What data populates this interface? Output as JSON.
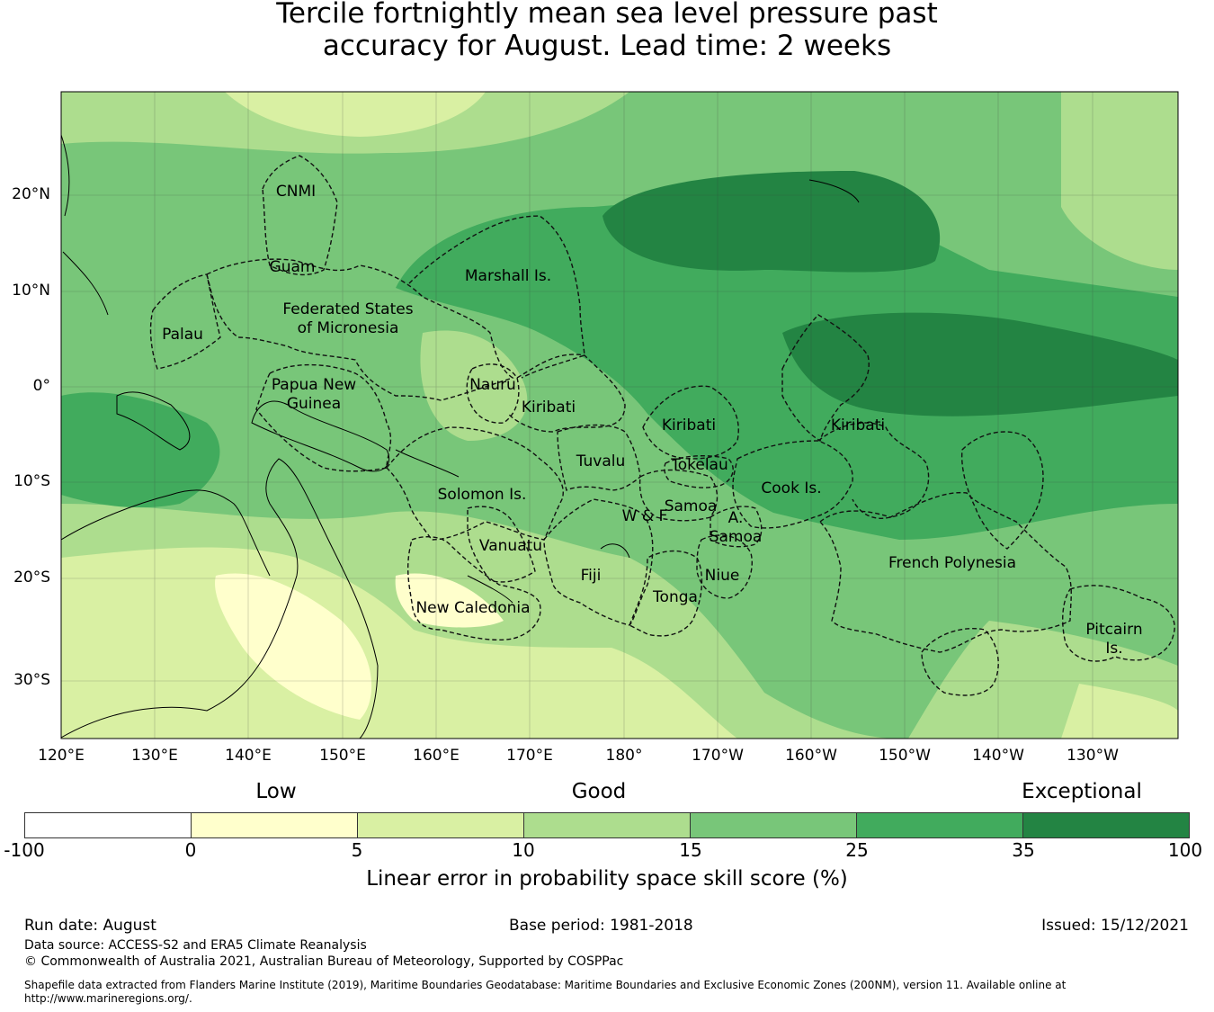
{
  "title": {
    "line1": "Tercile fortnightly mean sea level pressure past",
    "line2": "accuracy for August. Lead time: 2 weeks"
  },
  "map": {
    "lat_labels": [
      "20°N",
      "10°N",
      "0°",
      "10°S",
      "20°S",
      "30°S"
    ],
    "lon_labels": [
      "120°E",
      "130°E",
      "140°E",
      "150°E",
      "160°E",
      "170°E",
      "180°",
      "170°W",
      "160°W",
      "150°W",
      "140°W",
      "130°W"
    ],
    "regions": [
      {
        "name": "CNMI",
        "lines": [
          "CNMI"
        ]
      },
      {
        "name": "Guam",
        "lines": [
          "Guam"
        ]
      },
      {
        "name": "Marshall Is.",
        "lines": [
          "Marshall Is."
        ]
      },
      {
        "name": "Federated States of Micronesia",
        "lines": [
          "Federated States",
          "of Micronesia"
        ]
      },
      {
        "name": "Palau",
        "lines": [
          "Palau"
        ]
      },
      {
        "name": "Papua New Guinea",
        "lines": [
          "Papua New",
          "Guinea"
        ]
      },
      {
        "name": "Nauru",
        "lines": [
          "Nauru"
        ]
      },
      {
        "name": "Kiribati West",
        "lines": [
          "Kiribati"
        ]
      },
      {
        "name": "Kiribati Central",
        "lines": [
          "Kiribati"
        ]
      },
      {
        "name": "Kiribati East",
        "lines": [
          "Kiribati"
        ]
      },
      {
        "name": "Tuvalu",
        "lines": [
          "Tuvalu"
        ]
      },
      {
        "name": "Tokelau",
        "lines": [
          "Tokelau"
        ]
      },
      {
        "name": "Solomon Is.",
        "lines": [
          "Solomon Is."
        ]
      },
      {
        "name": "Samoa",
        "lines": [
          "Samoa"
        ]
      },
      {
        "name": "W & F",
        "lines": [
          "W & F"
        ]
      },
      {
        "name": "A. Samoa",
        "lines": [
          "A.",
          "Samoa"
        ]
      },
      {
        "name": "Cook Is.",
        "lines": [
          "Cook Is."
        ]
      },
      {
        "name": "Vanuatu",
        "lines": [
          "Vanuatu"
        ]
      },
      {
        "name": "Fiji",
        "lines": [
          "Fiji"
        ]
      },
      {
        "name": "Niue",
        "lines": [
          "Niue"
        ]
      },
      {
        "name": "Tonga",
        "lines": [
          "Tonga"
        ]
      },
      {
        "name": "New Caledonia",
        "lines": [
          "New Caledonia"
        ]
      },
      {
        "name": "French Polynesia",
        "lines": [
          "French Polynesia"
        ]
      },
      {
        "name": "Pitcairn Is.",
        "lines": [
          "Pitcairn",
          "Is."
        ]
      }
    ]
  },
  "legend": {
    "categories": [
      "Low",
      "Good",
      "Exceptional"
    ],
    "colors": [
      "#ffffff",
      "#ffffcc",
      "#d9f0a3",
      "#addd8e",
      "#78c679",
      "#41ab5d",
      "#238443"
    ],
    "ticks": [
      "-100",
      "0",
      "5",
      "10",
      "15",
      "25",
      "35",
      "100"
    ],
    "label": "Linear error in probability space skill score (%)"
  },
  "footer": {
    "run_date": "Run date: August",
    "base_period": "Base period: 1981-2018",
    "issued": "Issued: 15/12/2021",
    "data_source": "Data source: ACCESS-S2 and ERA5 Climate Reanalysis",
    "copyright": "© Commonwealth of Australia 2021, Australian Bureau of Meteorology, Supported by COSPPac",
    "shapefile_line1": "Shapefile data extracted from Flanders Marine Institute (2019), Maritime Boundaries Geodatabase: Maritime Boundaries and Exclusive Economic Zones (200NM), version 11. Available online at",
    "shapefile_line2": "http://www.marineregions.org/."
  }
}
